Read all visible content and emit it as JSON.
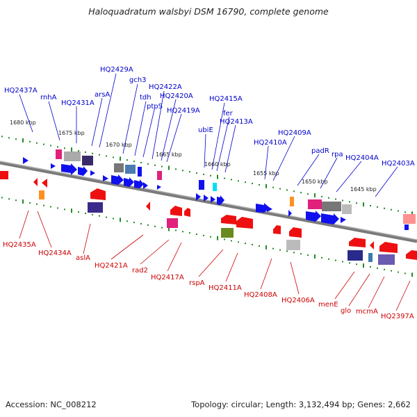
{
  "title": "Haloquadratum walsbyi DSM 16790, complete genome",
  "footer": {
    "accession": "Accession: NC_008212",
    "stats": "Topology: circular; Length: 3,132,494 bp; Genes: 2,662"
  },
  "colors": {
    "forward_label": "#0000cc",
    "reverse_label": "#cc0000",
    "forward_gene": "#0000ee",
    "reverse_gene": "#ee0000",
    "backbone": "#888888",
    "tick": "#228b22"
  },
  "kbp_labels": [
    "1680 kbp",
    "1675 kbp",
    "1670 kbp",
    "1665 kbp",
    "1660 kbp",
    "1655 kbp",
    "1650 kbp",
    "1645 kbp"
  ],
  "forward_labels": [
    "HQ2437A",
    "rnhA",
    "HQ2431A",
    "arsA",
    "HQ2429A",
    "gch3",
    "tdh",
    "ptpS",
    "HQ2422A",
    "HQ2420A",
    "HQ2419A",
    "ubiE",
    "HQ2415A",
    "fer",
    "HQ2413A",
    "HQ2410A",
    "HQ2409A",
    "padR",
    "rpa",
    "HQ2404A",
    "HQ2403A"
  ],
  "reverse_labels": [
    "HQ2435A",
    "HQ2434A",
    "aslA",
    "HQ2421A",
    "rad2",
    "HQ2417A",
    "rspA",
    "HQ2411A",
    "HQ2408A",
    "HQ2406A",
    "menE",
    "glo",
    "mcmA",
    "HQ2397A"
  ]
}
